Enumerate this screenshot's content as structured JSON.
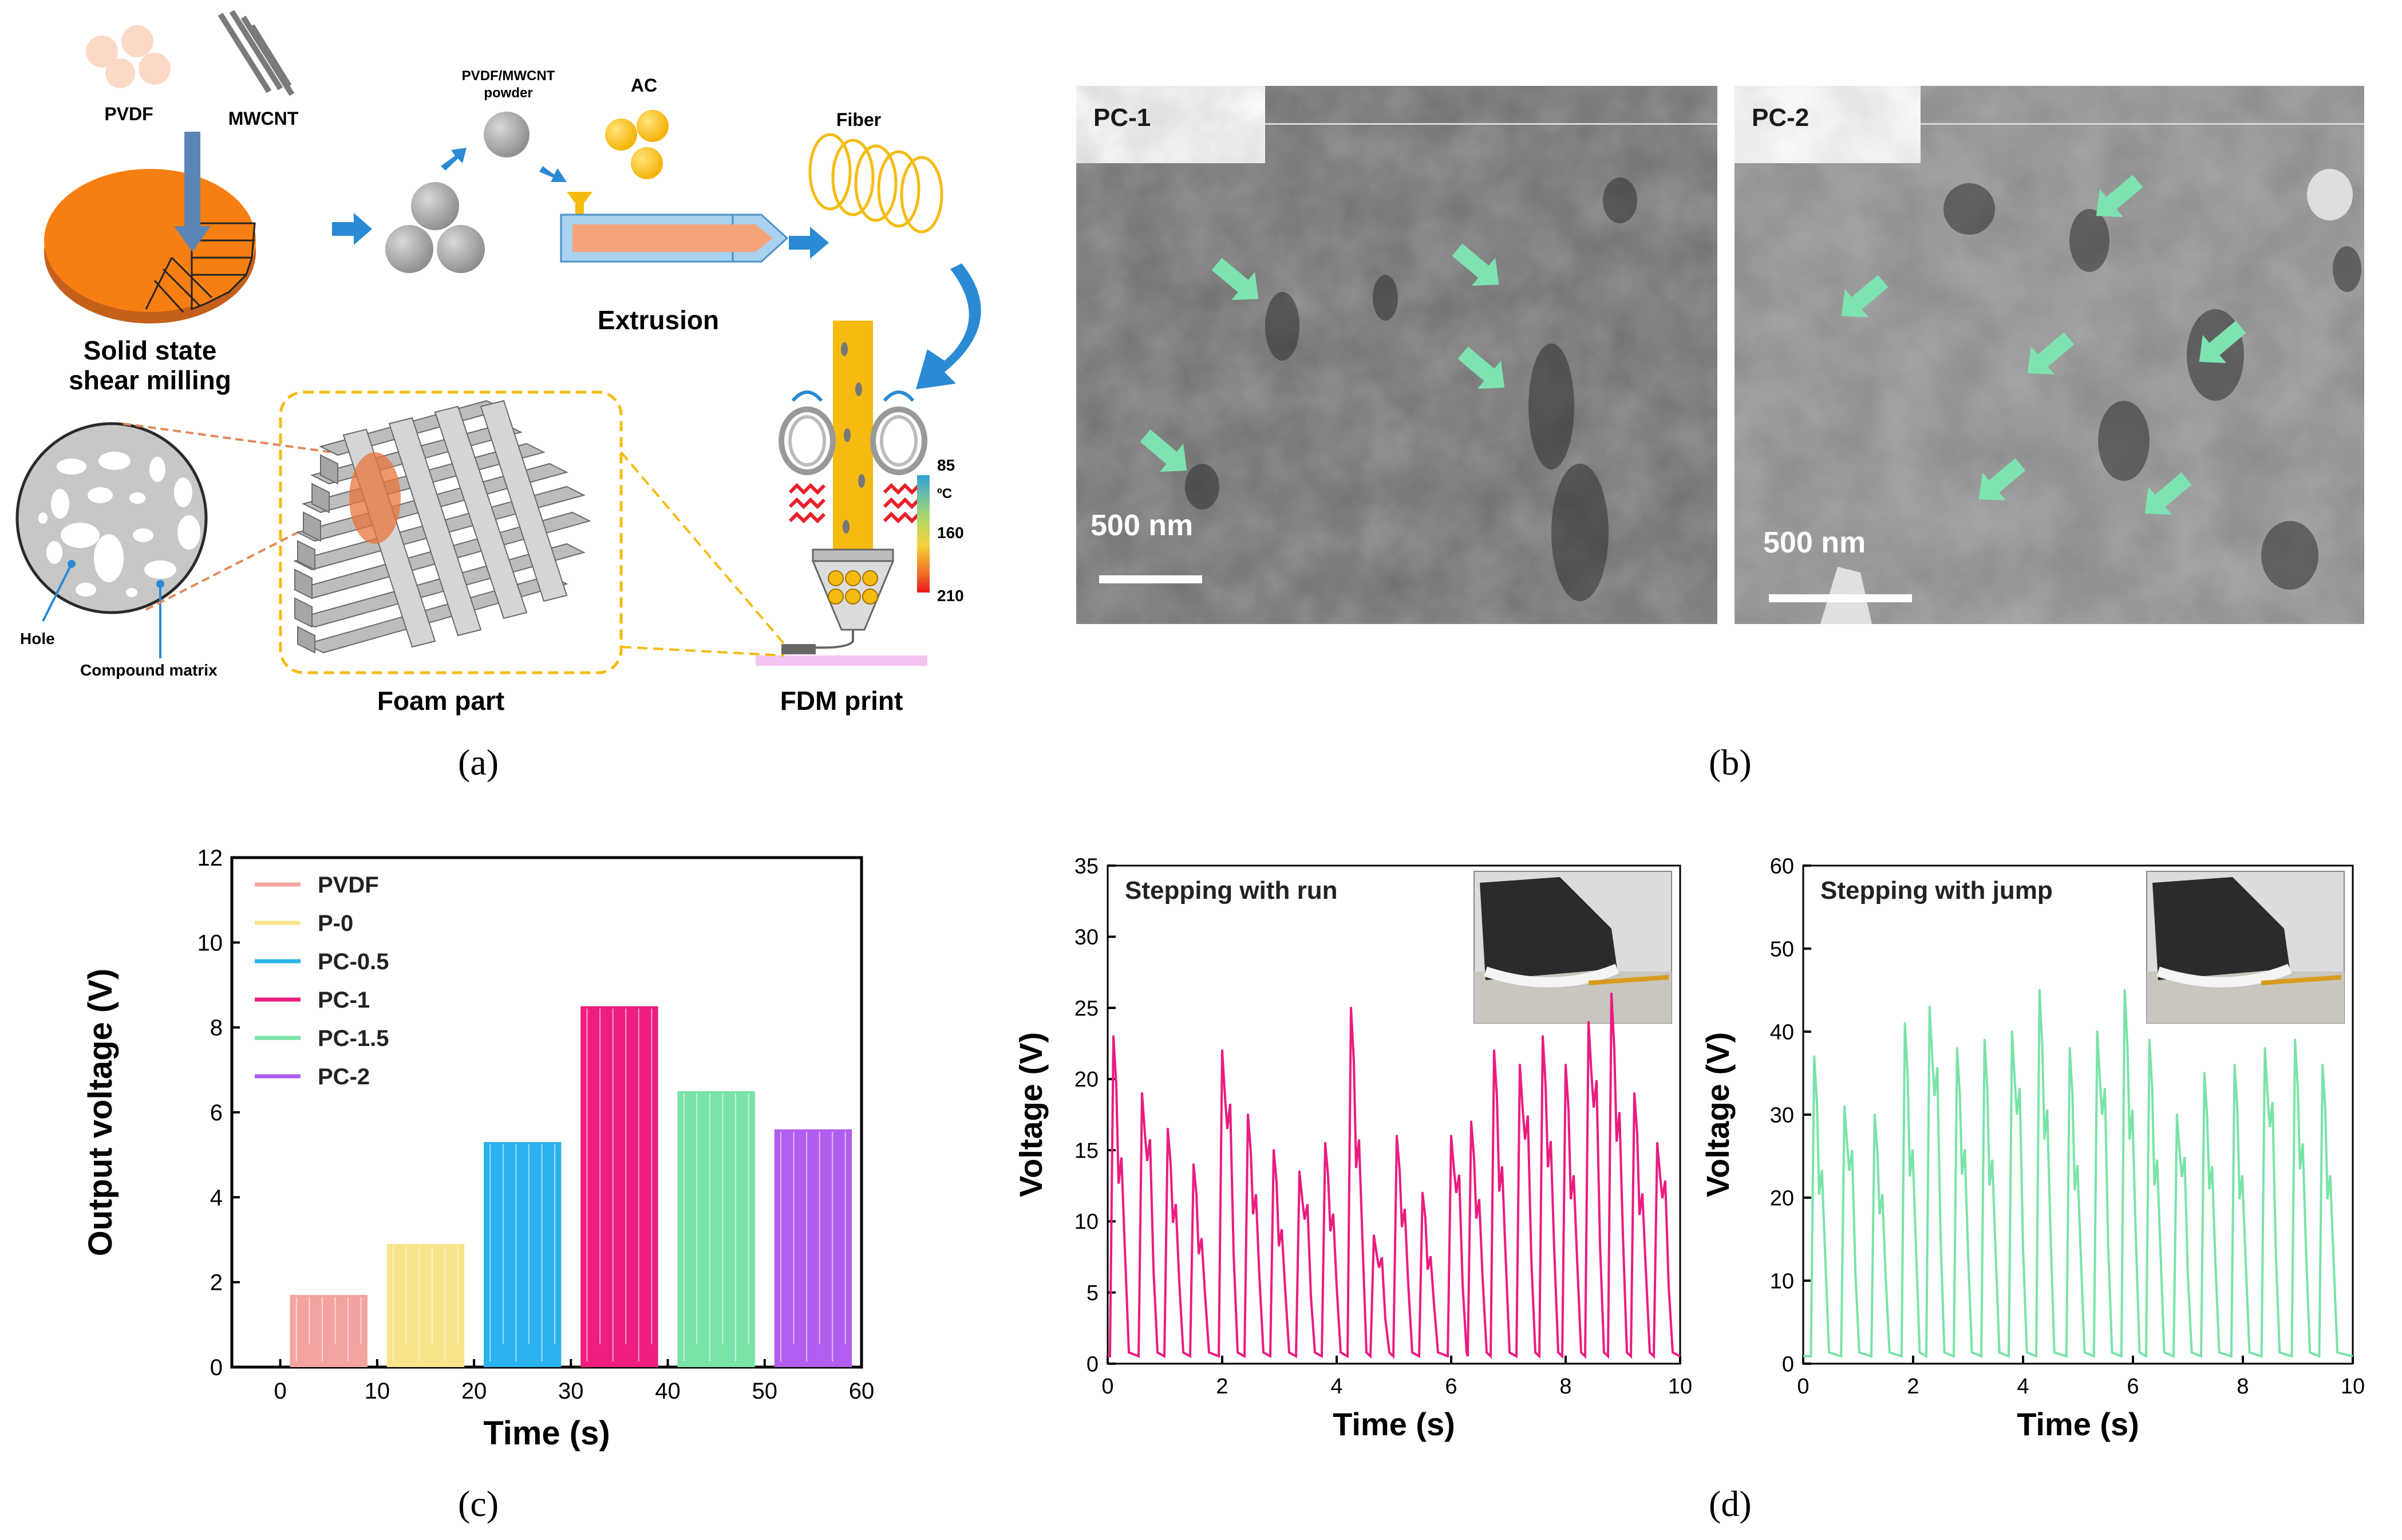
{
  "panel_a": {
    "label_open": "(",
    "label_letter": "a",
    "label_close": ")",
    "pvdf": "PVDF",
    "mwcnt": "MWCNT",
    "powder_line1": "PVDF/MWCNT",
    "powder_line2": "powder",
    "ac": "AC",
    "fiber": "Fiber",
    "extrusion": "Extrusion",
    "milling_line1": "Solid state",
    "milling_line2": "shear milling",
    "hole": "Hole",
    "compound_matrix": "Compound matrix",
    "foam_part": "Foam part",
    "fdm_print": "FDM print",
    "scale_top": "85",
    "scale_unit": "ºC",
    "scale_mid": "160",
    "scale_bottom": "210",
    "colors": {
      "orange": "#f77f12",
      "blue_arrow": "#2a8ad3",
      "yellow": "#f5bb10",
      "gray": "#9e9e9e"
    }
  },
  "panel_b": {
    "label_open": "(",
    "label_letter": "b",
    "label_close": ")",
    "left_title": "PC-1",
    "left_scale": "500 nm",
    "right_title": "PC-2",
    "right_scale": "500 nm",
    "arrow_color": "#7ee3b0"
  },
  "panel_c": {
    "label_open": "(",
    "label_letter": "c",
    "label_close": ")"
  },
  "panel_d": {
    "label_open": "(",
    "label_letter": "d",
    "label_close": ")"
  },
  "chart_data": [
    {
      "type": "bar",
      "id": "c",
      "title": "",
      "xlabel": "Time (s)",
      "ylabel": "Output voltage (V)",
      "xlim": [
        -5,
        60
      ],
      "ylim": [
        0,
        12
      ],
      "xticks": [
        0,
        10,
        20,
        30,
        40,
        50,
        60
      ],
      "yticks": [
        0,
        2,
        4,
        6,
        8,
        10,
        12
      ],
      "legend_position": "top-left",
      "series": [
        {
          "name": "PVDF",
          "x_start": 1,
          "x_end": 9,
          "value": 1.7,
          "color": "#f4a3a0"
        },
        {
          "name": "P-0",
          "x_start": 11,
          "x_end": 19,
          "value": 2.9,
          "color": "#f8e58a"
        },
        {
          "name": "PC-0.5",
          "x_start": 21,
          "x_end": 29,
          "value": 5.3,
          "color": "#2ab2ee"
        },
        {
          "name": "PC-1",
          "x_start": 31,
          "x_end": 39,
          "value": 8.5,
          "color": "#ee1e7f"
        },
        {
          "name": "PC-1.5",
          "x_start": 41,
          "x_end": 49,
          "value": 6.5,
          "color": "#79e3a8"
        },
        {
          "name": "PC-2",
          "x_start": 51,
          "x_end": 59,
          "value": 5.6,
          "color": "#b15ef0"
        }
      ]
    },
    {
      "type": "line",
      "id": "d-run",
      "annotation": "Stepping with run",
      "xlabel": "Time (s)",
      "ylabel": "Voltage (V)",
      "xlim": [
        0,
        10
      ],
      "ylim": [
        0,
        35
      ],
      "xticks": [
        0,
        2,
        4,
        6,
        8,
        10
      ],
      "yticks": [
        0,
        5,
        10,
        15,
        20,
        25,
        30,
        35
      ],
      "color": "#ec1b7f",
      "peak_times": [
        0.1,
        0.6,
        1.05,
        1.5,
        2.0,
        2.45,
        2.9,
        3.35,
        3.8,
        4.25,
        4.65,
        5.05,
        5.5,
        6.0,
        6.35,
        6.75,
        7.2,
        7.6,
        8.0,
        8.4,
        8.8,
        9.2,
        9.6
      ],
      "peak_values": [
        23,
        19,
        16.5,
        14,
        22,
        17.5,
        15,
        13.5,
        15.5,
        25,
        9,
        16,
        12,
        16,
        17,
        22,
        21,
        23,
        21,
        24,
        26,
        19,
        15.5
      ]
    },
    {
      "type": "line",
      "id": "d-jump",
      "annotation": "Stepping with jump",
      "xlabel": "Time (s)",
      "ylabel": "Voltage (V)",
      "xlim": [
        0,
        10
      ],
      "ylim": [
        0,
        60
      ],
      "xticks": [
        0,
        2,
        4,
        6,
        8,
        10
      ],
      "yticks": [
        0,
        10,
        20,
        30,
        40,
        50,
        60
      ],
      "color": "#79e3a8",
      "peak_times": [
        0.2,
        0.75,
        1.3,
        1.85,
        2.3,
        2.8,
        3.3,
        3.8,
        4.3,
        4.85,
        5.35,
        5.85,
        6.3,
        6.8,
        7.3,
        7.85,
        8.4,
        8.95,
        9.45
      ],
      "peak_values": [
        37,
        31,
        30,
        41,
        43,
        38,
        39,
        40,
        45,
        38,
        40,
        45,
        39,
        30,
        35,
        36,
        38,
        39,
        36
      ]
    }
  ]
}
